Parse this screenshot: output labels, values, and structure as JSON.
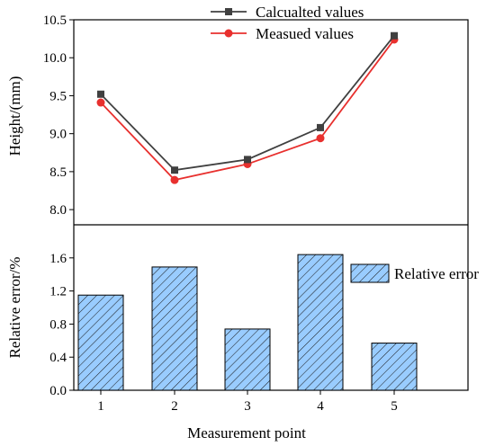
{
  "chart_data": [
    {
      "type": "line",
      "ylabel": "Height/(mm)",
      "ylim": [
        7.8,
        10.5
      ],
      "yticks": [
        8.0,
        8.5,
        9.0,
        9.5,
        10.0,
        10.5
      ],
      "x": [
        1,
        2,
        3,
        4,
        5
      ],
      "series": [
        {
          "name": "Calcualted values",
          "values": [
            9.52,
            8.52,
            8.66,
            9.08,
            10.29
          ],
          "color": "#404040",
          "marker": "square"
        },
        {
          "name": "Measued values",
          "values": [
            9.41,
            8.39,
            8.6,
            8.94,
            10.24
          ],
          "color": "#e8302e",
          "marker": "circle"
        }
      ],
      "legend": "top-right"
    },
    {
      "type": "bar",
      "ylabel": "Relative error/%",
      "ylim": [
        0,
        2.0
      ],
      "yticks": [
        0.0,
        0.4,
        0.8,
        1.2,
        1.6
      ],
      "categories": [
        "1",
        "2",
        "3",
        "4",
        "5"
      ],
      "series": [
        {
          "name": "Relative error",
          "values": [
            1.15,
            1.49,
            0.74,
            1.64,
            0.57
          ],
          "color": "#99ccff",
          "pattern": "hatch"
        }
      ],
      "legend": "top-right"
    }
  ],
  "xlabel": "Measurement point"
}
